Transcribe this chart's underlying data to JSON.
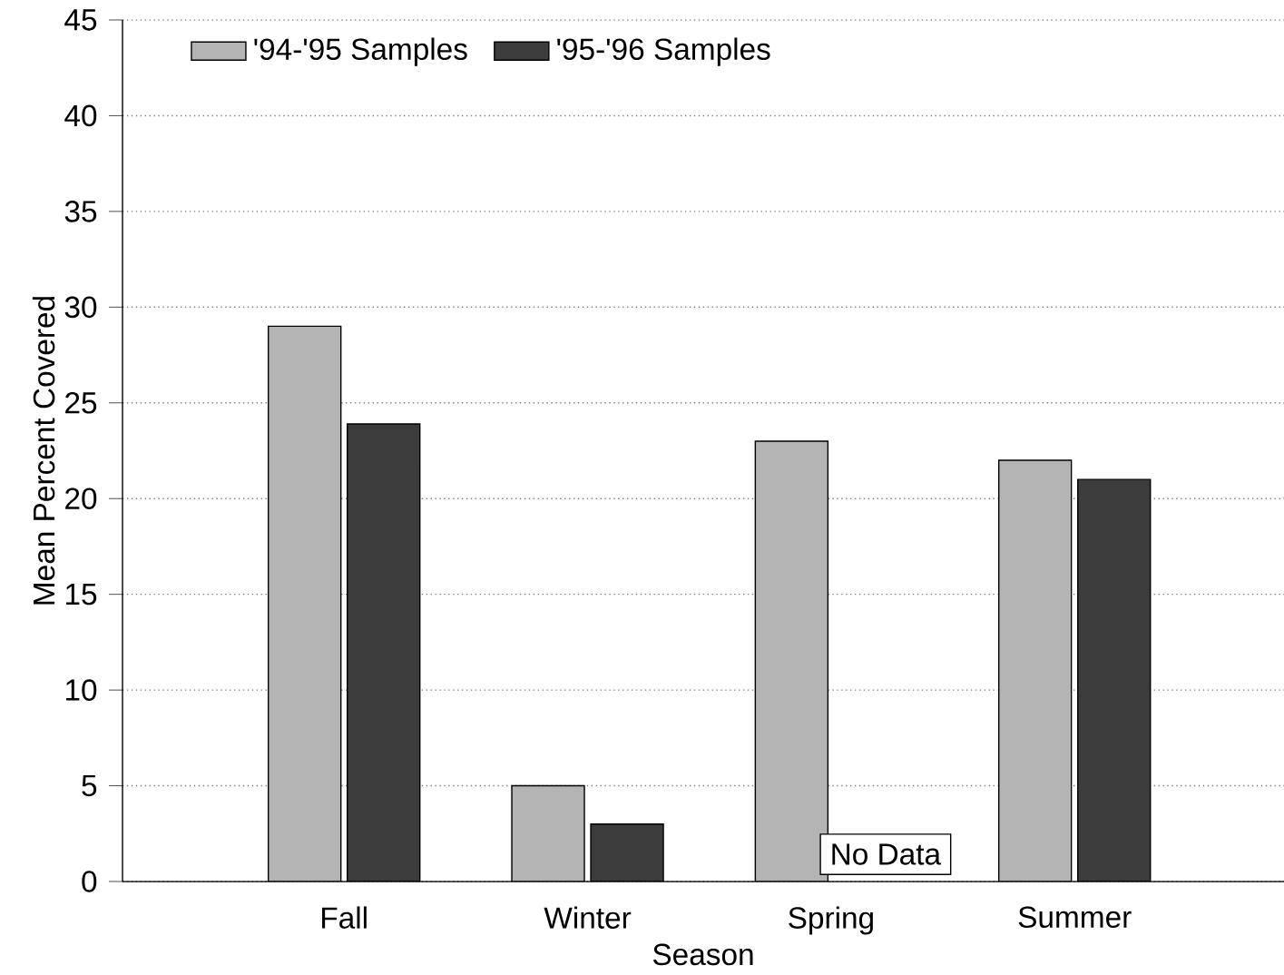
{
  "chart_data": {
    "type": "bar",
    "xlabel": "Season",
    "ylabel": "Mean Percent Covered",
    "categories": [
      "Fall",
      "Winter",
      "Spring",
      "Summer"
    ],
    "series": [
      {
        "name": "'94-'95 Samples",
        "color": "#b4b4b4",
        "values": [
          29,
          5,
          23,
          22
        ]
      },
      {
        "name": "'95-'96 Samples",
        "color": "#3c3c3c",
        "values": [
          23.9,
          3,
          null,
          21
        ]
      }
    ],
    "ylim": [
      0,
      45
    ],
    "yticks": [
      0,
      5,
      10,
      15,
      20,
      25,
      30,
      35,
      40,
      45
    ],
    "grid": "y",
    "legend": "top left",
    "annotations": [
      "No Data"
    ]
  }
}
